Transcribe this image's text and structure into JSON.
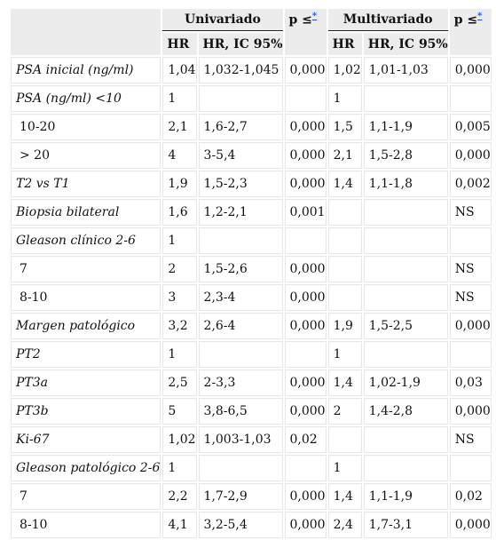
{
  "header": {
    "group_univ": "Univariado",
    "group_multi": "Multivariado",
    "p_label": "p ≤",
    "p_footnote": "*",
    "col_hr": "HR",
    "col_hr_ic": "HR, IC 95%"
  },
  "rows": [
    {
      "label": "PSA inicial (ng/ml)",
      "italic": true,
      "u_hr": "1,04",
      "u_ic": "1,032-1,045",
      "u_p": "0,000",
      "m_hr": "1,02",
      "m_ic": "1,01-1,03",
      "m_p": "0,000"
    },
    {
      "label": "PSA (ng/ml) <10",
      "italic": true,
      "u_hr": "1",
      "u_ic": "",
      "u_p": "",
      "m_hr": "1",
      "m_ic": "",
      "m_p": ""
    },
    {
      "label": "10-20",
      "italic": false,
      "u_hr": "2,1",
      "u_ic": "1,6-2,7",
      "u_p": "0,000",
      "m_hr": "1,5",
      "m_ic": "1,1-1,9",
      "m_p": "0,005"
    },
    {
      "label": "> 20",
      "italic": false,
      "u_hr": "4",
      "u_ic": "3-5,4",
      "u_p": "0,000",
      "m_hr": "2,1",
      "m_ic": "1,5-2,8",
      "m_p": "0,000"
    },
    {
      "label": "T2 vs T1",
      "italic": true,
      "u_hr": "1,9",
      "u_ic": "1,5-2,3",
      "u_p": "0,000",
      "m_hr": "1,4",
      "m_ic": "1,1-1,8",
      "m_p": "0,002"
    },
    {
      "label": "Biopsia bilateral",
      "italic": true,
      "u_hr": "1,6",
      "u_ic": "1,2-2,1",
      "u_p": "0,001",
      "m_hr": "",
      "m_ic": "",
      "m_p": "NS"
    },
    {
      "label": "Gleason clínico 2-6",
      "italic": true,
      "u_hr": "1",
      "u_ic": "",
      "u_p": "",
      "m_hr": "",
      "m_ic": "",
      "m_p": ""
    },
    {
      "label": "7",
      "italic": false,
      "u_hr": "2",
      "u_ic": "1,5-2,6",
      "u_p": "0,000",
      "m_hr": "",
      "m_ic": "",
      "m_p": "NS"
    },
    {
      "label": "8-10",
      "italic": false,
      "u_hr": "3",
      "u_ic": "2,3-4",
      "u_p": "0,000",
      "m_hr": "",
      "m_ic": "",
      "m_p": "NS"
    },
    {
      "label": "Margen patológico",
      "italic": true,
      "u_hr": "3,2",
      "u_ic": "2,6-4",
      "u_p": "0,000",
      "m_hr": "1,9",
      "m_ic": "1,5-2,5",
      "m_p": "0,000"
    },
    {
      "label": "PT2",
      "italic": true,
      "u_hr": "1",
      "u_ic": "",
      "u_p": "",
      "m_hr": "1",
      "m_ic": "",
      "m_p": ""
    },
    {
      "label": "PT3a",
      "italic": true,
      "u_hr": "2,5",
      "u_ic": "2-3,3",
      "u_p": "0,000",
      "m_hr": "1,4",
      "m_ic": "1,02-1,9",
      "m_p": "0,03"
    },
    {
      "label": "PT3b",
      "italic": true,
      "u_hr": "5",
      "u_ic": "3,8-6,5",
      "u_p": "0,000",
      "m_hr": "2",
      "m_ic": "1,4-2,8",
      "m_p": "0,000"
    },
    {
      "label": "Ki-67",
      "italic": true,
      "u_hr": "1,02",
      "u_ic": "1,003-1,03",
      "u_p": "0,02",
      "m_hr": "",
      "m_ic": "",
      "m_p": "NS"
    },
    {
      "label": "Gleason patológico 2-6",
      "italic": true,
      "u_hr": "1",
      "u_ic": "",
      "u_p": "",
      "m_hr": "1",
      "m_ic": "",
      "m_p": ""
    },
    {
      "label": "7",
      "italic": false,
      "u_hr": "2,2",
      "u_ic": "1,7-2,9",
      "u_p": "0,000",
      "m_hr": "1,4",
      "m_ic": "1,1-1,9",
      "m_p": "0,02"
    },
    {
      "label": "8-10",
      "italic": false,
      "u_hr": "4,1",
      "u_ic": "3,2-5,4",
      "u_p": "0,000",
      "m_hr": "2,4",
      "m_ic": "1,7-3,1",
      "m_p": "0,000"
    }
  ]
}
